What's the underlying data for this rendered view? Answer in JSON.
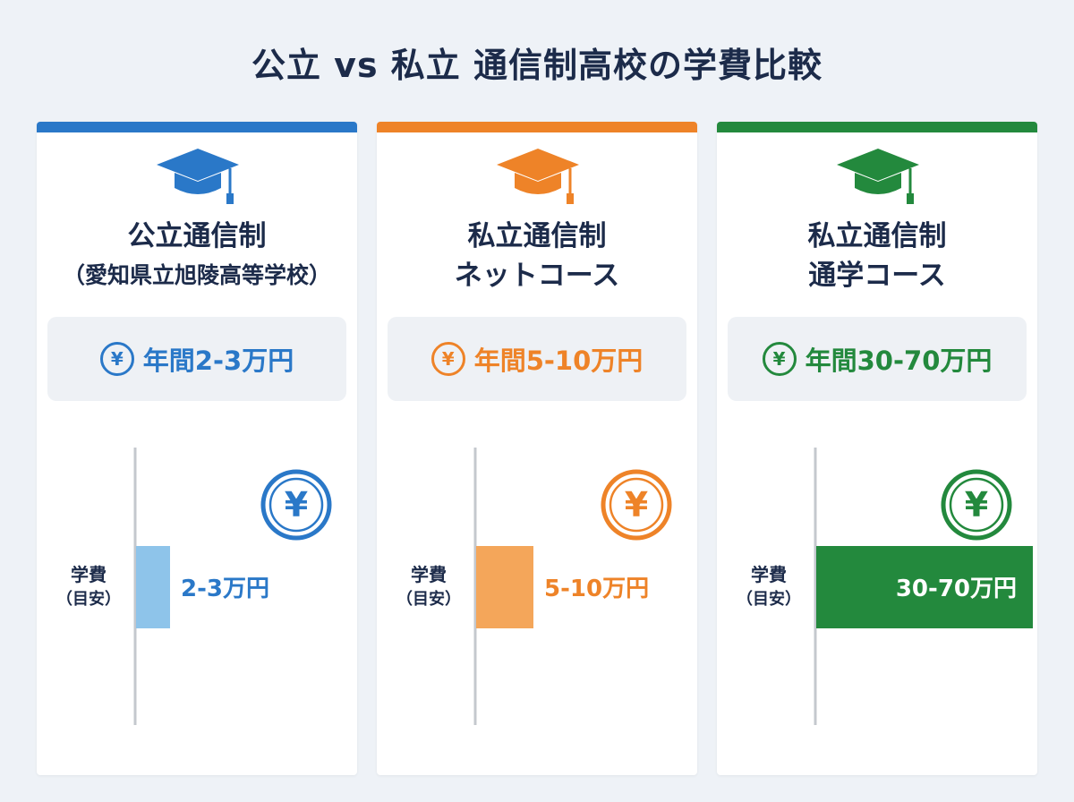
{
  "title": "公立 vs 私立 通信制高校の学費比較",
  "chart_data": {
    "type": "bar",
    "orientation": "horizontal",
    "categories": [
      "公立通信制（愛知県立旭陵高等学校）",
      "私立通信制ネットコース",
      "私立通信制通学コース"
    ],
    "unit": "万円",
    "values": [
      [
        2,
        3
      ],
      [
        5,
        10
      ],
      [
        30,
        70
      ]
    ],
    "xlim": [
      0,
      70
    ],
    "ylabel": "学費（目安）",
    "grid": false,
    "legend": "none"
  },
  "cards": [
    {
      "color": "#2a78c8",
      "bar_color": "#8ec4ea",
      "head_line1": "公立通信制",
      "head_line2": "（愛知県立旭陵高等学校）",
      "yen_symbol": "¥",
      "fee_text": "年間2-3万円",
      "axis_label_1": "学費",
      "axis_label_2": "（目安）",
      "bar_value": 3,
      "bar_text": "2-3万円",
      "label_inside": false
    },
    {
      "color": "#ee8328",
      "bar_color": "#f4a65a",
      "head_line1": "私立通信制",
      "head_line2": "ネットコース",
      "yen_symbol": "¥",
      "fee_text": "年間5-10万円",
      "axis_label_1": "学費",
      "axis_label_2": "（目安）",
      "bar_value": 10,
      "bar_text": "5-10万円",
      "label_inside": false
    },
    {
      "color": "#23893d",
      "bar_color": "#23893d",
      "head_line1": "私立通信制",
      "head_line2": "通学コース",
      "yen_symbol": "¥",
      "fee_text": "年間30-70万円",
      "axis_label_1": "学費",
      "axis_label_2": "（目安）",
      "bar_value": 70,
      "bar_text": "30-70万円",
      "label_inside": true
    }
  ]
}
